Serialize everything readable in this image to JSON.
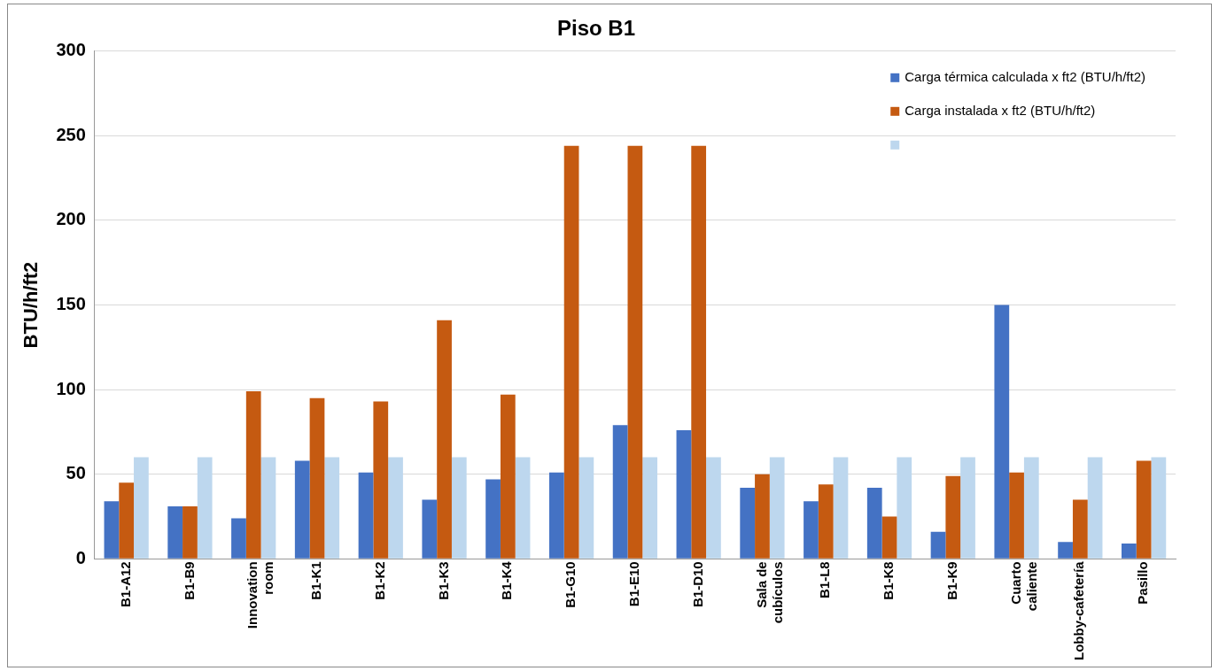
{
  "chart_data": {
    "type": "bar",
    "title": "Piso B1",
    "ylabel": "BTU/h/ft2",
    "categories": [
      "B1-A12",
      "B1-B9",
      "Innovation room",
      "B1-K1",
      "B1-K2",
      "B1-K3",
      "B1-K4",
      "B1-G10",
      "B1-E10",
      "B1-D10",
      "Sala de cubículos",
      "B1-L8",
      "B1-K8",
      "B1-K9",
      "Cuarto caliente",
      "Lobby-cafetería",
      "Pasillo"
    ],
    "series": [
      {
        "name": "Carga térmica calculada x ft2 (BTU/h/ft2)",
        "color": "#4472c4",
        "values": [
          34,
          31,
          24,
          58,
          51,
          35,
          47,
          51,
          79,
          76,
          42,
          34,
          42,
          16,
          150,
          10,
          9
        ]
      },
      {
        "name": "Carga instalada x ft2 (BTU/h/ft2)",
        "color": "#c55a11",
        "values": [
          45,
          31,
          99,
          95,
          93,
          141,
          97,
          244,
          244,
          244,
          50,
          44,
          25,
          49,
          51,
          35,
          58
        ]
      },
      {
        "color": "#bdd7ee",
        "values": [
          60,
          60,
          60,
          60,
          60,
          60,
          60,
          60,
          60,
          60,
          60,
          60,
          60,
          60,
          60,
          60,
          60
        ]
      }
    ],
    "ylim": [
      0,
      300
    ],
    "yticks": [
      0,
      50,
      100,
      150,
      200,
      250,
      300
    ],
    "grid": "y",
    "legend": "top right"
  }
}
